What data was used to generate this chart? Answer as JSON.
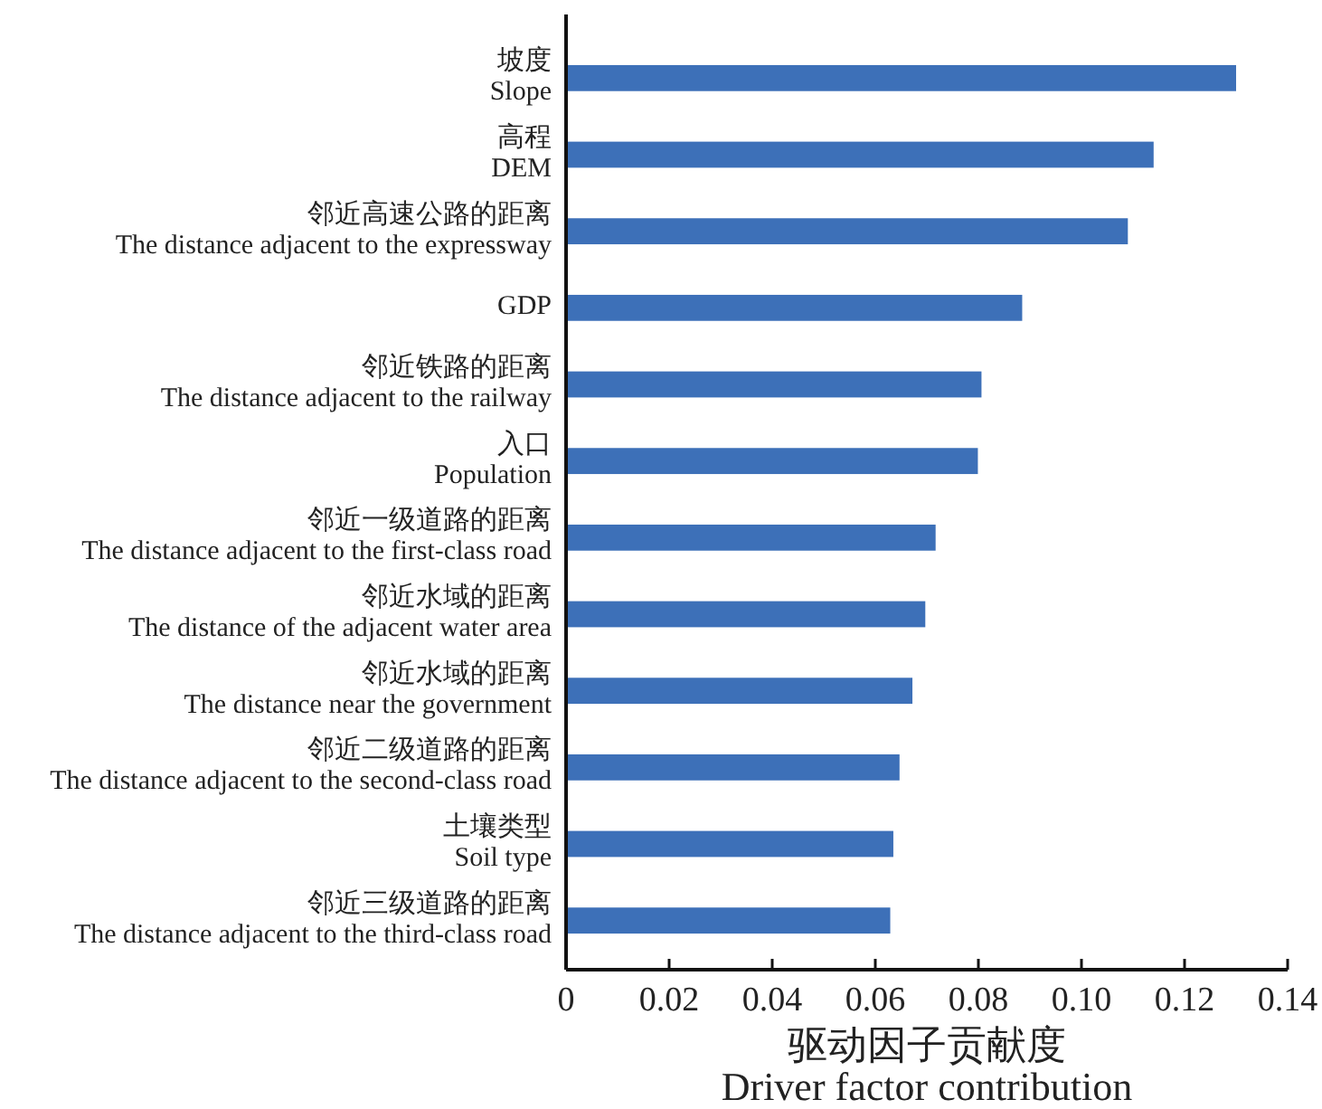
{
  "chart_data": {
    "type": "bar",
    "orientation": "horizontal",
    "xlabel": "驱动因子贡献度\nDriver factor contribution",
    "categories": [
      "坡度\nSlope",
      "高程\nDEM",
      "邻近高速公路的距离\nThe distance adjacent to the expressway",
      "GDP",
      "邻近铁路的距离\nThe distance adjacent to the railway",
      "入口\nPopulation",
      "邻近一级道路的距离\nThe distance adjacent to the first-class road",
      "邻近水域的距离\nThe distance of the adjacent water area",
      "邻近水域的距离\nThe distance near the government",
      "邻近二级道路的距离\nThe distance adjacent to the second-class road",
      "土壤类型\nSoil type",
      "邻近三级道路的距离\nThe distance adjacent to the third-class road"
    ],
    "values": [
      0.13,
      0.114,
      0.109,
      0.0885,
      0.0806,
      0.0799,
      0.0717,
      0.0697,
      0.0672,
      0.0647,
      0.0635,
      0.0629
    ],
    "color": "#3d70b8",
    "xlim": [
      0,
      0.14
    ],
    "xticks": [
      0,
      0.02,
      0.04,
      0.06,
      0.08,
      {
        "value": 0.1,
        "label": "0.10"
      },
      0.12,
      0.14
    ]
  }
}
